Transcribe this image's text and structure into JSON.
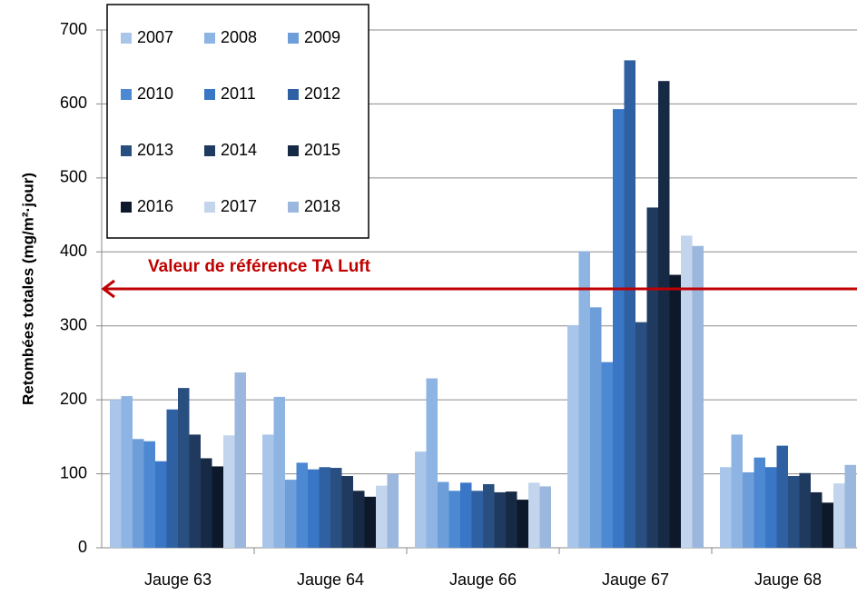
{
  "chart_data": {
    "type": "bar",
    "y_label": "Retombées totales (mg/m²·jour)",
    "categories": [
      "Jauge 63",
      "Jauge 64",
      "Jauge 66",
      "Jauge 67",
      "Jauge 68"
    ],
    "series": [
      {
        "name": "2007",
        "color": "#a9c6ea",
        "values": [
          200,
          153,
          130,
          301,
          109
        ]
      },
      {
        "name": "2008",
        "color": "#8db4e2",
        "values": [
          205,
          204,
          229,
          401,
          153
        ]
      },
      {
        "name": "2009",
        "color": "#6d9ed9",
        "values": [
          147,
          92,
          89,
          325,
          102
        ]
      },
      {
        "name": "2010",
        "color": "#4d88d2",
        "values": [
          144,
          115,
          77,
          251,
          122
        ]
      },
      {
        "name": "2011",
        "color": "#3a76c6",
        "values": [
          117,
          106,
          88,
          593,
          109
        ]
      },
      {
        "name": "2012",
        "color": "#2f60a2",
        "values": [
          187,
          109,
          77,
          659,
          138
        ]
      },
      {
        "name": "2013",
        "color": "#284f80",
        "values": [
          216,
          108,
          86,
          305,
          97
        ]
      },
      {
        "name": "2014",
        "color": "#1f3a5e",
        "values": [
          153,
          97,
          75,
          460,
          101
        ]
      },
      {
        "name": "2015",
        "color": "#172a45",
        "values": [
          121,
          77,
          76,
          631,
          75
        ]
      },
      {
        "name": "2016",
        "color": "#0d192b",
        "values": [
          110,
          69,
          65,
          369,
          61
        ]
      },
      {
        "name": "2017",
        "color": "#c2d5ed",
        "values": [
          152,
          84,
          88,
          422,
          87
        ]
      },
      {
        "name": "2018",
        "color": "#9bb7dd",
        "values": [
          237,
          100,
          83,
          408,
          112
        ]
      }
    ],
    "ylim": [
      0,
      700
    ],
    "yticks": [
      0,
      100,
      200,
      300,
      400,
      500,
      600,
      700
    ],
    "grid": true,
    "legend": "top-left",
    "reference_line": {
      "value": 350,
      "label": "Valeur de référence TA Luft",
      "color": "#c00000"
    }
  }
}
